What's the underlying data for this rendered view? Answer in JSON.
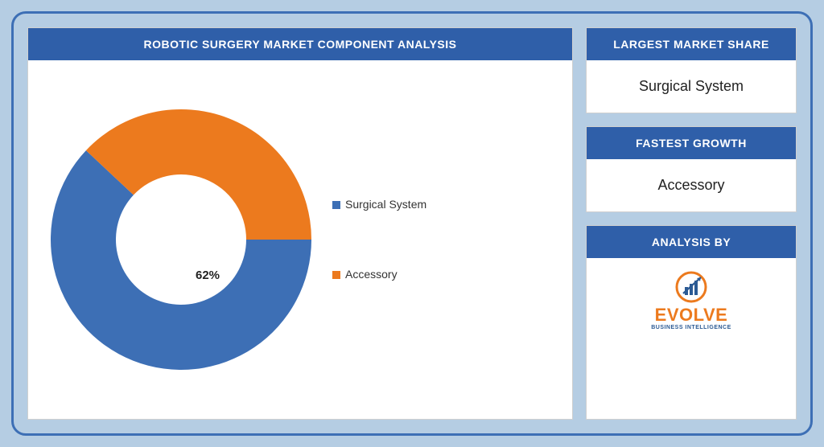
{
  "background_color": "#b5cde3",
  "frame_border_color": "#3d6fb5",
  "header_bg": "#2f5fa9",
  "header_fg": "#ffffff",
  "chart": {
    "title": "ROBOTIC SURGERY MARKET COMPONENT ANALYSIS",
    "type": "donut",
    "inner_radius_pct": 45,
    "outer_radius_pct": 90,
    "background_color": "#ffffff",
    "start_angle_deg": 90,
    "direction": "clockwise",
    "slices": [
      {
        "label": "Surgical System",
        "value": 62,
        "color": "#3d6fb5",
        "show_pct_label": true
      },
      {
        "label": "Accessory",
        "value": 38,
        "color": "#ec7a1e",
        "show_pct_label": false
      }
    ],
    "pct_label": {
      "text": "62%",
      "fontsize": 15,
      "fontweight": 700,
      "color": "#222222",
      "left_pct": 55,
      "top_pct": 60
    },
    "legend": {
      "position": "right",
      "fontsize": 14,
      "color": "#333333",
      "items": [
        {
          "swatch": "#3d6fb5",
          "label": "Surgical System"
        },
        {
          "swatch": "#ec7a1e",
          "label": "Accessory"
        }
      ]
    }
  },
  "cards": {
    "largest_share": {
      "title": "LARGEST MARKET SHARE",
      "value": "Surgical System"
    },
    "fastest_growth": {
      "title": "FASTEST GROWTH",
      "value": "Accessory"
    },
    "analysis_by": {
      "title": "ANALYSIS BY"
    }
  },
  "logo": {
    "word": "EVOLVE",
    "word_color": "#ec7a1e",
    "sub": "BUSINESS INTELLIGENCE",
    "sub_color": "#2b5a94",
    "icon_ring_color": "#ec7a1e",
    "icon_bars_color": "#2b5a94",
    "icon_arrow_color": "#2b5a94"
  }
}
